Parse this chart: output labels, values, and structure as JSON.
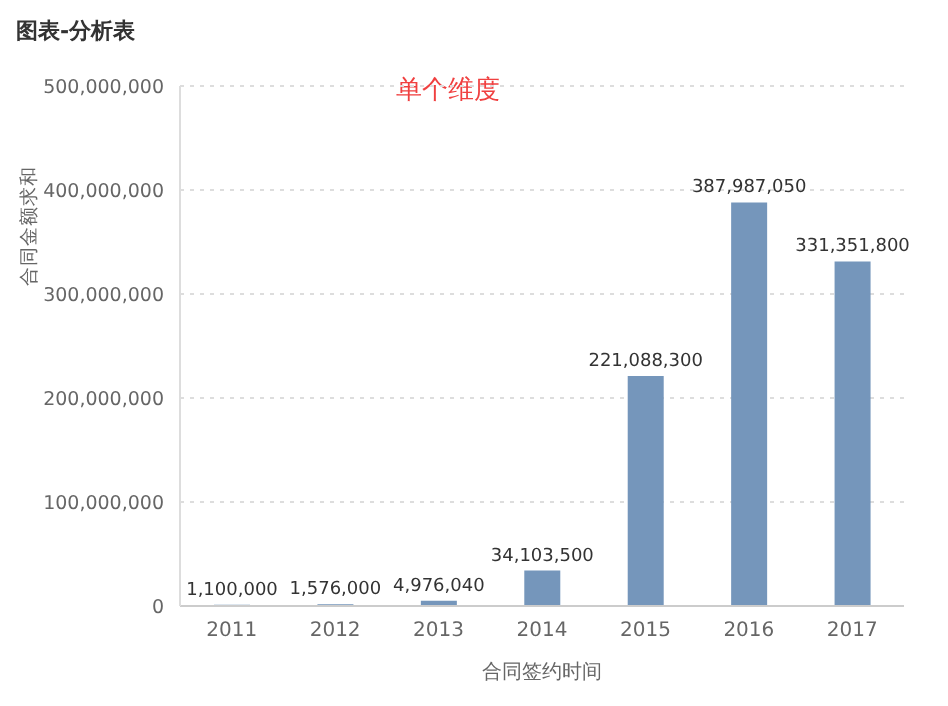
{
  "chart_data": {
    "type": "bar",
    "title": "图表-分析表",
    "subtitle": "单个维度",
    "xlabel": "合同签约时间",
    "ylabel": "合同金额求和",
    "categories": [
      "2011",
      "2012",
      "2013",
      "2014",
      "2015",
      "2016",
      "2017"
    ],
    "values": [
      1100000,
      1576000,
      4976040,
      34103500,
      221088300,
      387987050,
      331351800
    ],
    "value_labels": [
      "1,100,000",
      "1,576,000",
      "4,976,040",
      "34,103,500",
      "221,088,300",
      "387,987,050",
      "331,351,800"
    ],
    "color": "#7596bb",
    "ylim": [
      0,
      500000000
    ],
    "yticks": [
      0,
      {
        "value": 100000000,
        "label": "100,000,000"
      },
      {
        "value": 200000000,
        "label": "200,000,000"
      },
      {
        "value": 300000000,
        "label": "300,000,000"
      },
      {
        "value": 400000000,
        "label": "400,000,000"
      },
      {
        "value": 500000000,
        "label": "500,000,000"
      }
    ],
    "grid": "y"
  }
}
